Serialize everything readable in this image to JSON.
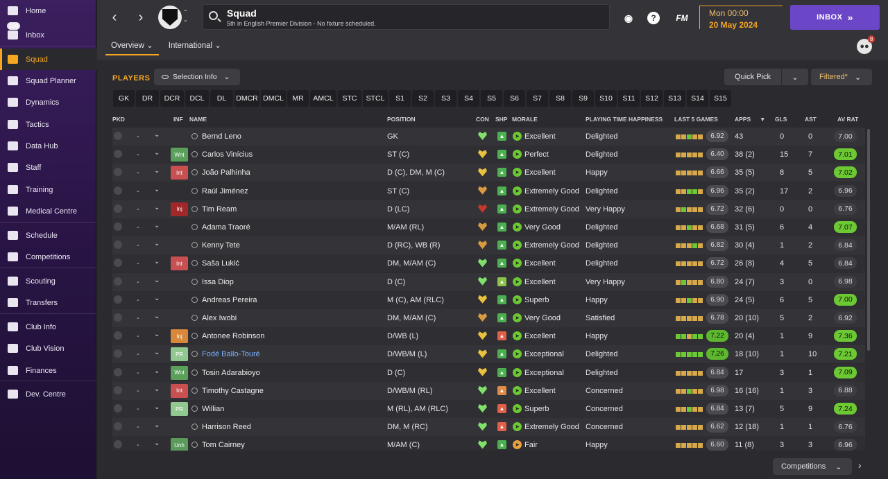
{
  "sidebar": {
    "items": [
      {
        "label": "Home",
        "icon": "home-icon",
        "badge": ""
      },
      {
        "label": "Inbox",
        "icon": "inbox-icon",
        "badge": "150"
      },
      {
        "label": "Squad",
        "icon": "shirt-icon",
        "badge": "",
        "active": true
      },
      {
        "label": "Squad Planner",
        "icon": "clipboard-icon",
        "badge": ""
      },
      {
        "label": "Dynamics",
        "icon": "people-network-icon",
        "badge": ""
      },
      {
        "label": "Tactics",
        "icon": "tactics-board-icon",
        "badge": ""
      },
      {
        "label": "Data Hub",
        "icon": "data-hub-icon",
        "badge": ""
      },
      {
        "label": "Staff",
        "icon": "staff-icon",
        "badge": ""
      },
      {
        "label": "Training",
        "icon": "cone-icon",
        "badge": ""
      },
      {
        "label": "Medical Centre",
        "icon": "medical-kit-icon",
        "badge": ""
      },
      {
        "label": "Schedule",
        "icon": "calendar-icon",
        "badge": ""
      },
      {
        "label": "Competitions",
        "icon": "trophy-icon",
        "badge": ""
      },
      {
        "label": "Scouting",
        "icon": "magnifier-icon",
        "badge": ""
      },
      {
        "label": "Transfers",
        "icon": "transfer-arrows-icon",
        "badge": ""
      },
      {
        "label": "Club Info",
        "icon": "shield-icon",
        "badge": ""
      },
      {
        "label": "Club Vision",
        "icon": "briefcase-icon",
        "badge": ""
      },
      {
        "label": "Finances",
        "icon": "money-icon",
        "badge": ""
      },
      {
        "label": "Dev. Centre",
        "icon": "growth-chart-icon",
        "badge": ""
      }
    ]
  },
  "header": {
    "title": "Squad",
    "subtitle": "5th in English Premier Division - No fixture scheduled.",
    "date_time": "Mon 00:00",
    "date_day": "20 May 2024",
    "inbox_label": "INBOX",
    "inbox_arrows": "»",
    "fm_label": "FM",
    "help_label": "?",
    "staff_badge": "8",
    "tabs": [
      {
        "label": "Overview ⌄"
      },
      {
        "label": "International ⌄"
      }
    ]
  },
  "toolbar": {
    "players_label": "PLAYERS",
    "selection_info": "Selection Info",
    "quick_pick": "Quick Pick",
    "filtered": "Filtered*",
    "competitions": "Competitions"
  },
  "position_filters": [
    "GK",
    "DR",
    "DCR",
    "DCL",
    "DL",
    "DMCR",
    "DMCL",
    "MR",
    "AMCL",
    "STC",
    "STCL",
    "S1",
    "S2",
    "S3",
    "S4",
    "S5",
    "S6",
    "S7",
    "S8",
    "S9",
    "S10",
    "S11",
    "S12",
    "S13",
    "S14",
    "S15"
  ],
  "columns": {
    "pkd": "PKD",
    "inf": "INF",
    "name": "NAME",
    "position": "POSITION",
    "con": "CON",
    "shp": "SHP",
    "morale": "MORALE",
    "pth": "PLAYING TIME HAPPINESS",
    "last5": "LAST 5 GAMES",
    "apps": "APPS",
    "sort": "▼",
    "gls": "GLS",
    "ast": "AST",
    "avrat": "AV RAT"
  },
  "colors": {
    "accent": "#f5a623",
    "inbox": "#6b47c8",
    "good": "#6cc833"
  },
  "players": [
    {
      "sel": "-",
      "inf": "",
      "inf_color": "",
      "name": "Bernd Leno",
      "position": "GK",
      "con": "#7fe06a",
      "shp": "#4caf50",
      "mor_ic": "#6cc833",
      "morale": "Excellent",
      "pth": "Delighted",
      "last5": [
        "#d7a94a",
        "#d7a94a",
        "#6cc833",
        "#d7a94a",
        "#d7a94a"
      ],
      "l5": "6.92",
      "l5good": false,
      "apps": "43",
      "gls": "0",
      "ast": "0",
      "avr": "7.00",
      "avrgood": false
    },
    {
      "sel": "-",
      "inf": "Wnt",
      "inf_color": "#5aa05a",
      "name": "Carlos Vinícius",
      "position": "ST (C)",
      "con": "#e8c040",
      "shp": "#4caf50",
      "mor_ic": "#6cc833",
      "morale": "Perfect",
      "pth": "Delighted",
      "last5": [
        "#d7a94a",
        "#d7a94a",
        "#d7a94a",
        "#d7a94a",
        "#d7a94a"
      ],
      "l5": "6.40",
      "l5good": false,
      "apps": "38 (2)",
      "gls": "15",
      "ast": "7",
      "avr": "7.01",
      "avrgood": true
    },
    {
      "sel": "-",
      "inf": "Int",
      "inf_color": "#c85050",
      "name": "João Palhinha",
      "position": "D (C), DM, M (C)",
      "con": "#e8c040",
      "shp": "#4caf50",
      "mor_ic": "#6cc833",
      "morale": "Excellent",
      "pth": "Happy",
      "last5": [
        "#d7a94a",
        "#d7a94a",
        "#d7a94a",
        "#d7a94a",
        "#d7a94a"
      ],
      "l5": "6.66",
      "l5good": false,
      "apps": "35 (5)",
      "gls": "8",
      "ast": "5",
      "avr": "7.02",
      "avrgood": true
    },
    {
      "sel": "-",
      "inf": "",
      "inf_color": "",
      "name": "Raúl Jiménez",
      "position": "ST (C)",
      "con": "#d89a40",
      "shp": "#4caf50",
      "mor_ic": "#6cc833",
      "morale": "Extremely Good",
      "pth": "Delighted",
      "last5": [
        "#d7a94a",
        "#d7a94a",
        "#6cc833",
        "#6cc833",
        "#d7a94a"
      ],
      "l5": "6.96",
      "l5good": false,
      "apps": "35 (2)",
      "gls": "17",
      "ast": "2",
      "avr": "6.96",
      "avrgood": false
    },
    {
      "sel": "-",
      "inf": "Inj",
      "inf_color": "#a02828",
      "name": "Tim Ream",
      "position": "D (LC)",
      "con": "#c0392b",
      "shp": "#4caf50",
      "mor_ic": "#6cc833",
      "morale": "Extremely Good",
      "pth": "Very Happy",
      "last5": [
        "#d7a94a",
        "#6cc833",
        "#d7a94a",
        "#d7a94a",
        "#d7a94a"
      ],
      "l5": "6.72",
      "l5good": false,
      "apps": "32 (6)",
      "gls": "0",
      "ast": "0",
      "avr": "6.76",
      "avrgood": false
    },
    {
      "sel": "-",
      "inf": "",
      "inf_color": "",
      "name": "Adama Traoré",
      "position": "M/AM (RL)",
      "con": "#d89a40",
      "shp": "#4caf50",
      "mor_ic": "#6cc833",
      "morale": "Very Good",
      "pth": "Delighted",
      "last5": [
        "#d7a94a",
        "#d7a94a",
        "#6cc833",
        "#d7a94a",
        "#d7a94a"
      ],
      "l5": "6.68",
      "l5good": false,
      "apps": "31 (5)",
      "gls": "6",
      "ast": "4",
      "avr": "7.07",
      "avrgood": true
    },
    {
      "sel": "-",
      "inf": "",
      "inf_color": "",
      "name": "Kenny Tete",
      "position": "D (RC), WB (R)",
      "con": "#d89a40",
      "shp": "#4caf50",
      "mor_ic": "#6cc833",
      "morale": "Extremely Good",
      "pth": "Delighted",
      "last5": [
        "#d7a94a",
        "#d7a94a",
        "#d7a94a",
        "#6cc833",
        "#d7a94a"
      ],
      "l5": "6.82",
      "l5good": false,
      "apps": "30 (4)",
      "gls": "1",
      "ast": "2",
      "avr": "6.84",
      "avrgood": false
    },
    {
      "sel": "-",
      "inf": "Int",
      "inf_color": "#c85050",
      "name": "Saša Lukić",
      "position": "DM, M/AM (C)",
      "con": "#7fe06a",
      "shp": "#4caf50",
      "mor_ic": "#6cc833",
      "morale": "Excellent",
      "pth": "Delighted",
      "last5": [
        "#d7a94a",
        "#d7a94a",
        "#d7a94a",
        "#d7a94a",
        "#d7a94a"
      ],
      "l5": "6.72",
      "l5good": false,
      "apps": "26 (8)",
      "gls": "4",
      "ast": "5",
      "avr": "6.84",
      "avrgood": false
    },
    {
      "sel": "-",
      "inf": "",
      "inf_color": "",
      "name": "Issa Diop",
      "position": "D (C)",
      "con": "#7fe06a",
      "shp": "#8bc34a",
      "mor_ic": "#6cc833",
      "morale": "Excellent",
      "pth": "Very Happy",
      "last5": [
        "#d7a94a",
        "#6cc833",
        "#d7a94a",
        "#d7a94a",
        "#d7a94a"
      ],
      "l5": "6.80",
      "l5good": false,
      "apps": "24 (7)",
      "gls": "3",
      "ast": "0",
      "avr": "6.98",
      "avrgood": false
    },
    {
      "sel": "-",
      "inf": "",
      "inf_color": "",
      "name": "Andreas Pereira",
      "position": "M (C), AM (RLC)",
      "con": "#e8c040",
      "shp": "#4caf50",
      "mor_ic": "#6cc833",
      "morale": "Superb",
      "pth": "Happy",
      "last5": [
        "#d7a94a",
        "#d7a94a",
        "#6cc833",
        "#d7a94a",
        "#d7a94a"
      ],
      "l5": "6.90",
      "l5good": false,
      "apps": "24 (5)",
      "gls": "6",
      "ast": "5",
      "avr": "7.00",
      "avrgood": true
    },
    {
      "sel": "-",
      "inf": "",
      "inf_color": "",
      "name": "Alex Iwobi",
      "position": "DM, M/AM (C)",
      "con": "#d89a40",
      "shp": "#4caf50",
      "mor_ic": "#6cc833",
      "morale": "Very Good",
      "pth": "Satisfied",
      "last5": [
        "#d7a94a",
        "#d7a94a",
        "#d7a94a",
        "#d7a94a",
        "#d7a94a"
      ],
      "l5": "6.78",
      "l5good": false,
      "apps": "20 (10)",
      "gls": "5",
      "ast": "2",
      "avr": "6.92",
      "avrgood": false
    },
    {
      "sel": "-",
      "inf": "Inj",
      "inf_color": "#d8883a",
      "name": "Antonee Robinson",
      "position": "D/WB (L)",
      "con": "#e8c040",
      "shp": "#e0604a",
      "mor_ic": "#6cc833",
      "morale": "Excellent",
      "pth": "Happy",
      "last5": [
        "#6cc833",
        "#6cc833",
        "#d7a94a",
        "#6cc833",
        "#6cc833"
      ],
      "l5": "7.22",
      "l5good": true,
      "apps": "20 (4)",
      "gls": "1",
      "ast": "9",
      "avr": "7.36",
      "avrgood": true
    },
    {
      "sel": "-",
      "inf": "PR",
      "inf_color": "#90c890",
      "name": "Fodé Ballo-Touré",
      "position": "D/WB/M (L)",
      "con": "#e8c040",
      "shp": "#4caf50",
      "mor_ic": "#6cc833",
      "morale": "Exceptional",
      "pth": "Delighted",
      "last5": [
        "#6cc833",
        "#6cc833",
        "#6cc833",
        "#6cc833",
        "#6cc833"
      ],
      "l5": "7.26",
      "l5good": true,
      "apps": "18 (10)",
      "gls": "1",
      "ast": "10",
      "avr": "7.21",
      "avrgood": true,
      "link": true
    },
    {
      "sel": "-",
      "inf": "Wnt",
      "inf_color": "#5aa05a",
      "name": "Tosin Adarabioyo",
      "position": "D (C)",
      "con": "#e8c040",
      "shp": "#4caf50",
      "mor_ic": "#6cc833",
      "morale": "Exceptional",
      "pth": "Delighted",
      "last5": [
        "#d7a94a",
        "#d7a94a",
        "#d7a94a",
        "#d7a94a",
        "#d7a94a"
      ],
      "l5": "6.84",
      "l5good": false,
      "apps": "17",
      "gls": "3",
      "ast": "1",
      "avr": "7.09",
      "avrgood": true
    },
    {
      "sel": "-",
      "inf": "Int",
      "inf_color": "#c85050",
      "name": "Timothy Castagne",
      "position": "D/WB/M (RL)",
      "con": "#7fe06a",
      "shp": "#e08a4a",
      "mor_ic": "#6cc833",
      "morale": "Excellent",
      "pth": "Concerned",
      "last5": [
        "#d7a94a",
        "#d7a94a",
        "#6cc833",
        "#d7a94a",
        "#d7a94a"
      ],
      "l5": "6.98",
      "l5good": false,
      "apps": "16 (16)",
      "gls": "1",
      "ast": "3",
      "avr": "6.88",
      "avrgood": false
    },
    {
      "sel": "-",
      "inf": "PR",
      "inf_color": "#90c890",
      "name": "Willian",
      "position": "M (RL), AM (RLC)",
      "con": "#7fe06a",
      "shp": "#e0604a",
      "mor_ic": "#6cc833",
      "morale": "Superb",
      "pth": "Concerned",
      "last5": [
        "#d7a94a",
        "#d7a94a",
        "#6cc833",
        "#d7a94a",
        "#d7a94a"
      ],
      "l5": "6.84",
      "l5good": false,
      "apps": "13 (7)",
      "gls": "5",
      "ast": "9",
      "avr": "7.24",
      "avrgood": true
    },
    {
      "sel": "-",
      "inf": "",
      "inf_color": "",
      "name": "Harrison Reed",
      "position": "DM, M (RC)",
      "con": "#7fe06a",
      "shp": "#e0604a",
      "mor_ic": "#6cc833",
      "morale": "Extremely Good",
      "pth": "Concerned",
      "last5": [
        "#d7a94a",
        "#d7a94a",
        "#d7a94a",
        "#d7a94a",
        "#d7a94a"
      ],
      "l5": "6.62",
      "l5good": false,
      "apps": "12 (18)",
      "gls": "1",
      "ast": "1",
      "avr": "6.76",
      "avrgood": false
    },
    {
      "sel": "-",
      "inf": "Unh",
      "inf_color": "#5a9a5a",
      "name": "Tom Cairney",
      "position": "M/AM (C)",
      "con": "#7fe06a",
      "shp": "#4caf50",
      "mor_ic": "#e8a040",
      "morale": "Fair",
      "pth": "Happy",
      "last5": [
        "#d7a94a",
        "#d7a94a",
        "#d7a94a",
        "#d7a94a",
        "#d7a94a"
      ],
      "l5": "6.60",
      "l5good": false,
      "apps": "11 (8)",
      "gls": "3",
      "ast": "3",
      "avr": "6.96",
      "avrgood": false
    }
  ]
}
